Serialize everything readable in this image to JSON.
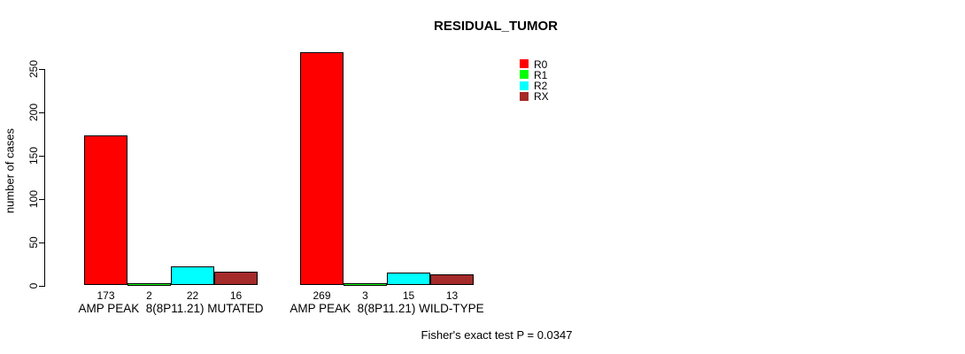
{
  "chart_data": {
    "type": "bar",
    "title": "RESIDUAL_TUMOR",
    "ylabel": "number of cases",
    "xlabel": "",
    "ylim": [
      0,
      250
    ],
    "yticks": [
      0,
      50,
      100,
      150,
      200,
      250
    ],
    "grid": false,
    "legend_position": "top-right",
    "background_color": "#FFFFFF",
    "text_color": "#000000",
    "categories": [
      "AMP PEAK  8(8P11.21) MUTATED",
      "AMP PEAK  8(8P11.21) WILD-TYPE"
    ],
    "series": [
      {
        "name": "R0",
        "color": "#FF0000",
        "values": [
          173,
          269
        ]
      },
      {
        "name": "R1",
        "color": "#00FF00",
        "values": [
          2,
          3
        ]
      },
      {
        "name": "R2",
        "color": "#00FFFF",
        "values": [
          22,
          15
        ]
      },
      {
        "name": "RX",
        "color": "#A52A2A",
        "values": [
          16,
          13
        ]
      }
    ],
    "bar_value_labels": [
      [
        "173",
        "2",
        "22",
        "16"
      ],
      [
        "269",
        "3",
        "15",
        "13"
      ]
    ],
    "annotation": "Fisher's exact test P = 0.0347"
  }
}
